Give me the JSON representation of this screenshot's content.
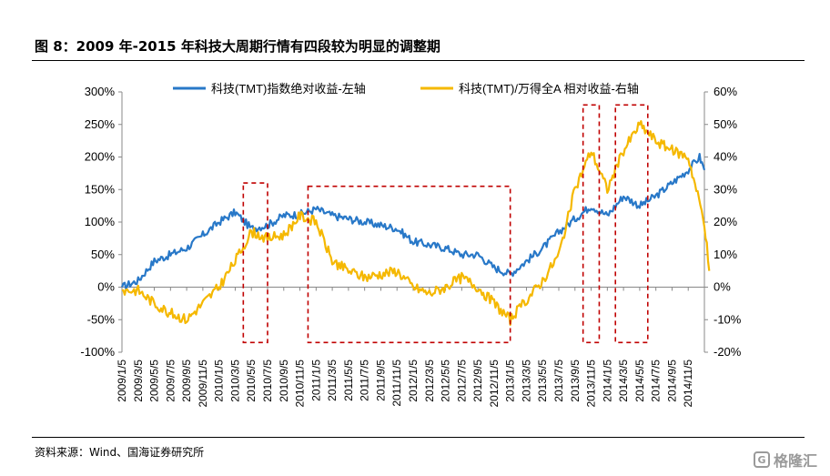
{
  "header": {
    "title": "图 8：2009 年-2015 年科技大周期行情有四段较为明显的调整期"
  },
  "footer": {
    "source": "资料来源：Wind、国海证券研究所",
    "watermark": "格隆汇"
  },
  "colors": {
    "series_left": "#2878C8",
    "series_right": "#F5B800",
    "highlight_box": "#C00000"
  },
  "chart_data": {
    "type": "line",
    "title": "",
    "x_tick_labels": [
      "2009/1/5",
      "2009/3/5",
      "2009/5/5",
      "2009/7/5",
      "2009/9/5",
      "2009/11/5",
      "2010/1/5",
      "2010/3/5",
      "2010/5/5",
      "2010/7/5",
      "2010/9/5",
      "2010/11/5",
      "2011/1/5",
      "2011/3/5",
      "2011/5/5",
      "2011/7/5",
      "2011/9/5",
      "2011/11/5",
      "2012/1/5",
      "2012/3/5",
      "2012/5/5",
      "2012/7/5",
      "2012/9/5",
      "2012/11/5",
      "2013/1/5",
      "2013/3/5",
      "2013/5/5",
      "2013/7/5",
      "2013/9/5",
      "2013/11/5",
      "2014/1/5",
      "2014/3/5",
      "2014/5/5",
      "2014/7/5",
      "2014/9/5",
      "2014/11/5"
    ],
    "y_left": {
      "ticks": [
        "-100%",
        "-50%",
        "0%",
        "50%",
        "100%",
        "150%",
        "200%",
        "250%",
        "300%"
      ],
      "ylim": [
        -100,
        300
      ]
    },
    "y_right": {
      "ticks": [
        "-20%",
        "-10%",
        "0%",
        "10%",
        "20%",
        "30%",
        "40%",
        "50%",
        "60%"
      ],
      "ylim": [
        -20,
        60
      ]
    },
    "series": [
      {
        "name": "科技(TMT)指数绝对收益-左轴",
        "axis": "left",
        "points": [
          [
            0,
            0
          ],
          [
            1,
            10
          ],
          [
            2,
            40
          ],
          [
            3,
            50
          ],
          [
            4,
            60
          ],
          [
            5,
            80
          ],
          [
            6,
            100
          ],
          [
            7,
            115
          ],
          [
            8,
            90
          ],
          [
            9,
            95
          ],
          [
            10,
            110
          ],
          [
            11,
            112
          ],
          [
            12,
            120
          ],
          [
            13,
            110
          ],
          [
            14,
            105
          ],
          [
            15,
            100
          ],
          [
            16,
            95
          ],
          [
            17,
            90
          ],
          [
            18,
            70
          ],
          [
            19,
            65
          ],
          [
            20,
            60
          ],
          [
            21,
            50
          ],
          [
            22,
            50
          ],
          [
            23,
            30
          ],
          [
            24,
            20
          ],
          [
            25,
            40
          ],
          [
            26,
            60
          ],
          [
            27,
            85
          ],
          [
            28,
            105
          ],
          [
            29,
            125
          ],
          [
            30,
            110
          ],
          [
            31,
            140
          ],
          [
            32,
            125
          ],
          [
            33,
            140
          ],
          [
            34,
            160
          ],
          [
            35,
            180
          ],
          [
            35.7,
            200
          ],
          [
            36,
            180
          ]
        ]
      },
      {
        "name": "科技(TMT)/万得全A 相对收益-右轴",
        "axis": "right",
        "points": [
          [
            0,
            -1
          ],
          [
            1,
            -1
          ],
          [
            2,
            -5
          ],
          [
            3,
            -8
          ],
          [
            4,
            -10
          ],
          [
            5,
            -5
          ],
          [
            6,
            0
          ],
          [
            7,
            8
          ],
          [
            8,
            17
          ],
          [
            9,
            15
          ],
          [
            10,
            16
          ],
          [
            11,
            22
          ],
          [
            12,
            20
          ],
          [
            13,
            8
          ],
          [
            14,
            5
          ],
          [
            15,
            3
          ],
          [
            16,
            4
          ],
          [
            17,
            5
          ],
          [
            18,
            0
          ],
          [
            19,
            -2
          ],
          [
            20,
            0
          ],
          [
            21,
            3
          ],
          [
            22,
            0
          ],
          [
            23,
            -5
          ],
          [
            24,
            -10
          ],
          [
            25,
            -4
          ],
          [
            26,
            2
          ],
          [
            27,
            10
          ],
          [
            28,
            30
          ],
          [
            29,
            42
          ],
          [
            30,
            30
          ],
          [
            31,
            42
          ],
          [
            32,
            50
          ],
          [
            33,
            45
          ],
          [
            34,
            42
          ],
          [
            35,
            40
          ],
          [
            36,
            20
          ],
          [
            36.3,
            5
          ]
        ]
      }
    ],
    "highlight_periods": [
      {
        "start": "2010/4",
        "end": "2010/7",
        "y_from": -85,
        "y_to": 160
      },
      {
        "start": "2010/12",
        "end": "2013/1",
        "y_from": -85,
        "y_to": 155
      },
      {
        "start": "2013/10",
        "end": "2013/12",
        "y_from": -85,
        "y_to": 280
      },
      {
        "start": "2014/2",
        "end": "2014/6",
        "y_from": -85,
        "y_to": 280
      }
    ],
    "grid": false,
    "legend_position": "top"
  }
}
